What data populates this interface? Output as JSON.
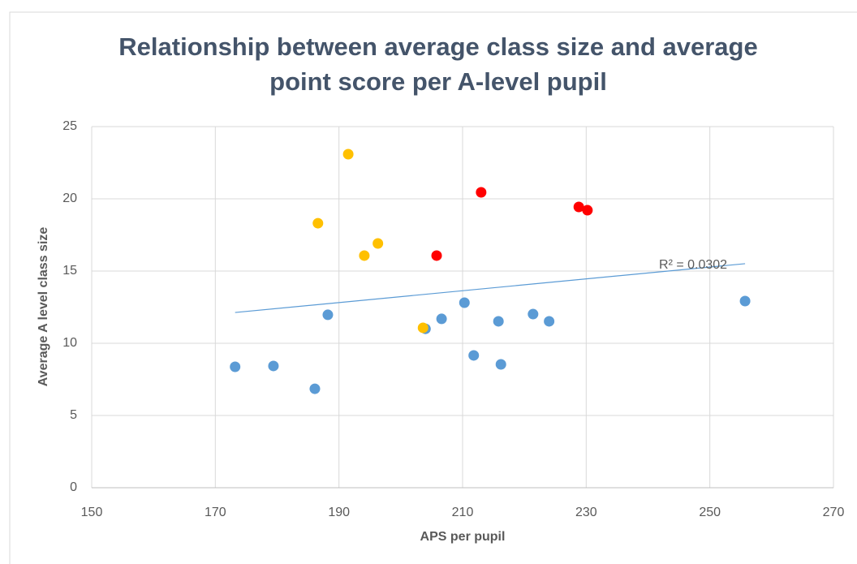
{
  "chart_data": {
    "type": "scatter",
    "title": [
      "Relationship between average class size and average",
      "point score per A-level pupil"
    ],
    "x_label": "APS per pupil",
    "y_label": "Average A level class size",
    "xlim": [
      150,
      270
    ],
    "xticks": [
      150,
      170,
      190,
      210,
      230,
      250,
      270
    ],
    "ylim": [
      0,
      25
    ],
    "yticks": [
      0,
      5,
      10,
      15,
      20,
      25
    ],
    "grid": true,
    "series": [
      {
        "color": "#5b9bd5",
        "x": [
          173.2,
          179.4,
          186.1,
          188.2,
          204.0,
          206.6,
          210.3,
          211.8,
          215.8,
          216.2,
          221.4,
          224.0,
          255.7
        ],
        "values": [
          8.37,
          8.43,
          6.85,
          11.97,
          11.0,
          11.69,
          12.81,
          9.16,
          11.52,
          8.54,
          12.02,
          11.52,
          12.92
        ]
      },
      {
        "color": "#ffc000",
        "x": [
          186.6,
          191.5,
          194.1,
          196.3,
          203.6
        ],
        "values": [
          18.31,
          23.09,
          16.07,
          16.91,
          11.07
        ]
      },
      {
        "color": "#ff0000",
        "x": [
          205.8,
          213.0,
          228.8,
          230.2
        ],
        "values": [
          16.07,
          20.45,
          19.44,
          19.21
        ]
      }
    ],
    "trendline": {
      "color": "#5b9bd5",
      "x": [
        173.2,
        255.7
      ],
      "values": [
        12.13,
        15.51
      ],
      "label": "R² = 0.0302"
    }
  }
}
